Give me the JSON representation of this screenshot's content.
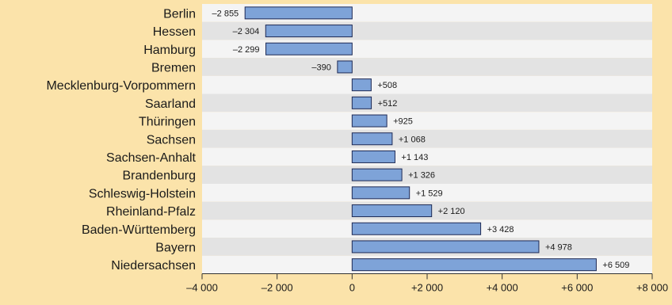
{
  "chart_data": {
    "type": "bar",
    "orientation": "horizontal",
    "categories": [
      "Berlin",
      "Hessen",
      "Hamburg",
      "Bremen",
      "Mecklenburg-Vorpommern",
      "Saarland",
      "Thüringen",
      "Sachsen",
      "Sachsen-Anhalt",
      "Brandenburg",
      "Schleswig-Holstein",
      "Rheinland-Pfalz",
      "Baden-Württemberg",
      "Bayern",
      "Niedersachsen"
    ],
    "values": [
      -2855,
      -2304,
      -2299,
      -390,
      508,
      512,
      925,
      1068,
      1143,
      1326,
      1529,
      2120,
      3428,
      4978,
      6509
    ],
    "value_labels": [
      "–2 855",
      "–2 304",
      "–2 299",
      "–390",
      "+508",
      "+512",
      "+925",
      "+1 068",
      "+1 143",
      "+1 326",
      "+1 529",
      "+2 120",
      "+3 428",
      "+4 978",
      "+6 509"
    ],
    "xlim": [
      -4000,
      8000
    ],
    "xticks": [
      -4000,
      -2000,
      0,
      2000,
      4000,
      6000,
      8000
    ],
    "xtick_labels": [
      "–4 000",
      "–2 000",
      "0",
      "+2 000",
      "+4 000",
      "+6 000",
      "+8 000"
    ],
    "title": "",
    "xlabel": "",
    "ylabel": "",
    "grid": false,
    "colors": {
      "background": "#fbe3aa",
      "band_light": "#f4f4f4",
      "band_dark": "#e3e3e3",
      "bar_fill": "#7ea3d8",
      "bar_stroke": "#1e2a55",
      "axis": "#333333"
    }
  }
}
